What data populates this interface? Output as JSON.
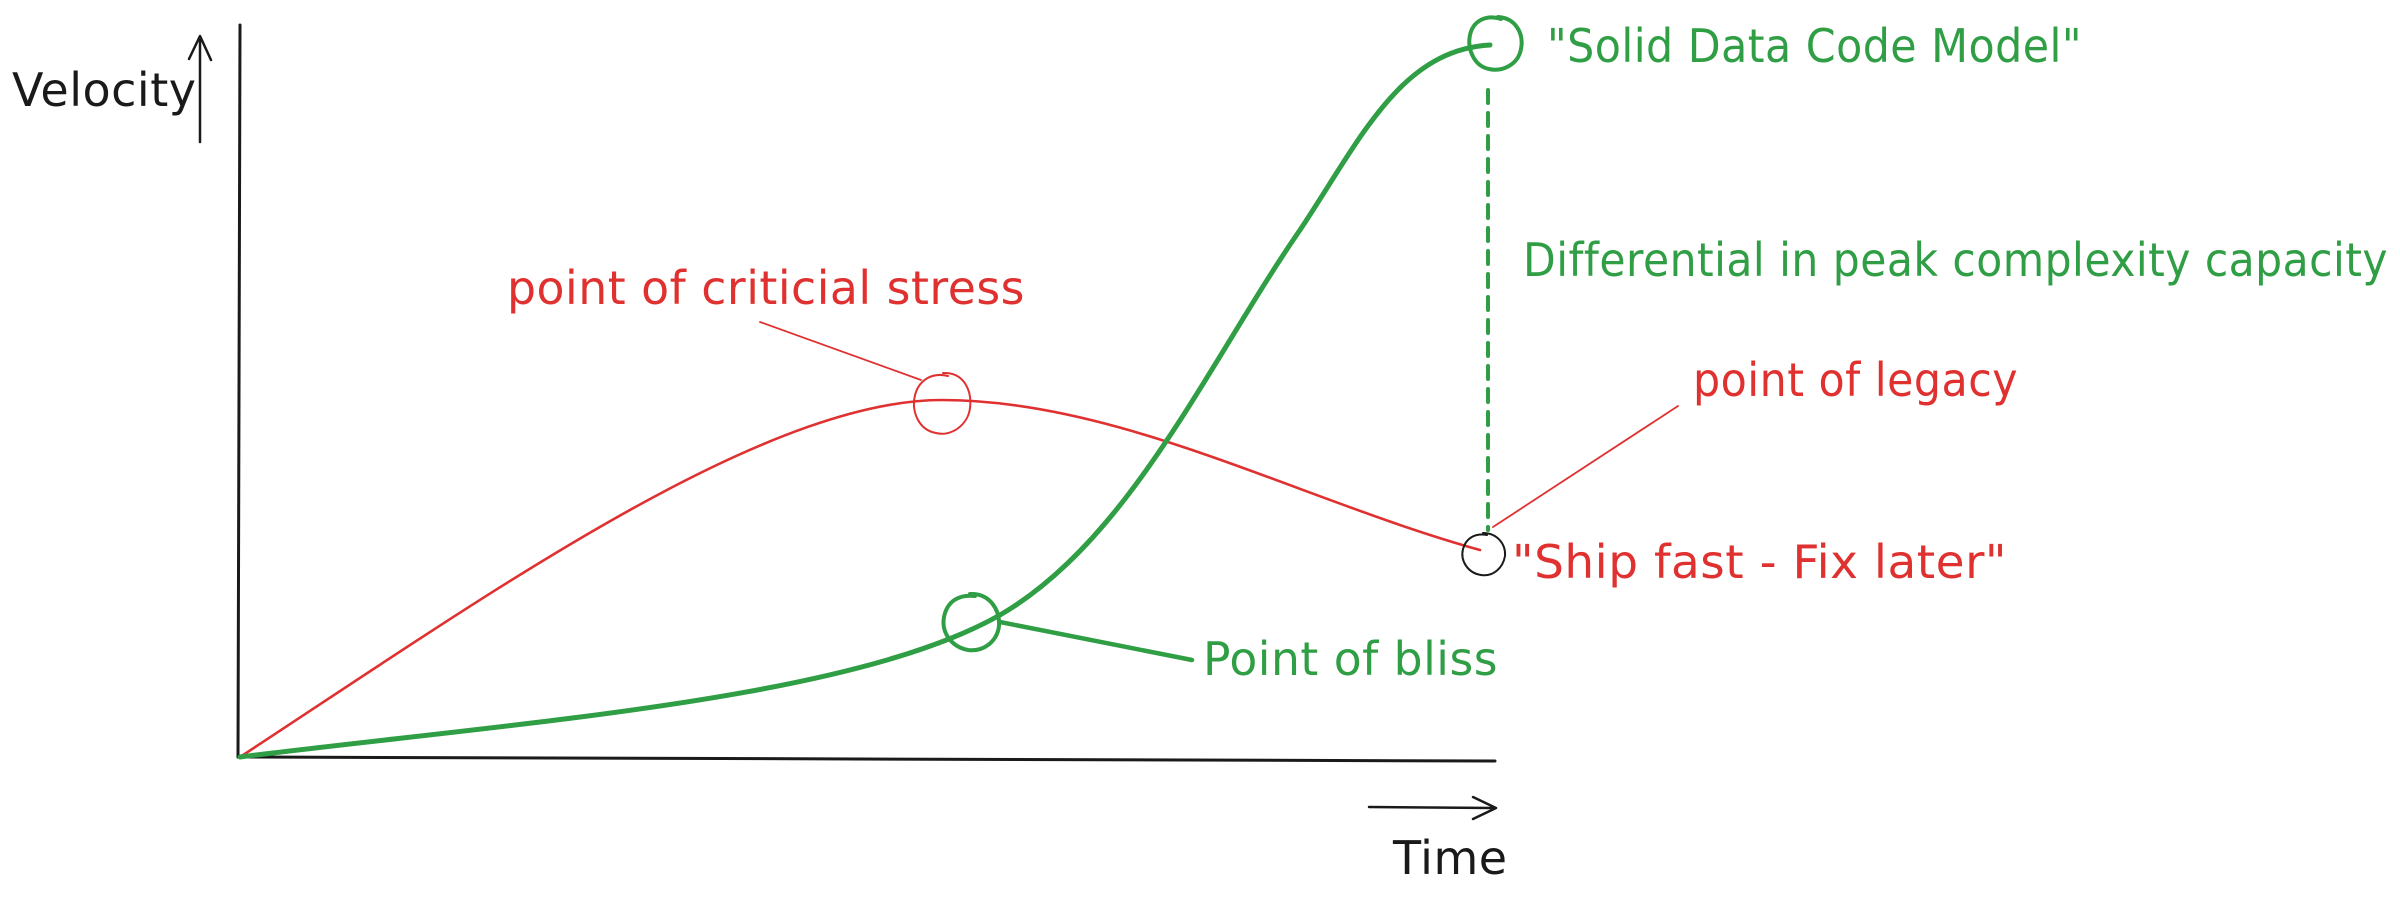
{
  "axes": {
    "y_label": "Velocity",
    "x_label": "Time"
  },
  "annotations": {
    "critical_stress": "point of criticial stress",
    "legacy": "point of legacy",
    "ship_fast": "\"Ship fast - Fix later\"",
    "solid_model": "\"Solid Data Code Model\"",
    "differential": "Differential in peak complexity capacity",
    "bliss": "Point of bliss"
  },
  "colors": {
    "ink": "#1a1a1a",
    "red": "#e03131",
    "green": "#2f9e44"
  }
}
